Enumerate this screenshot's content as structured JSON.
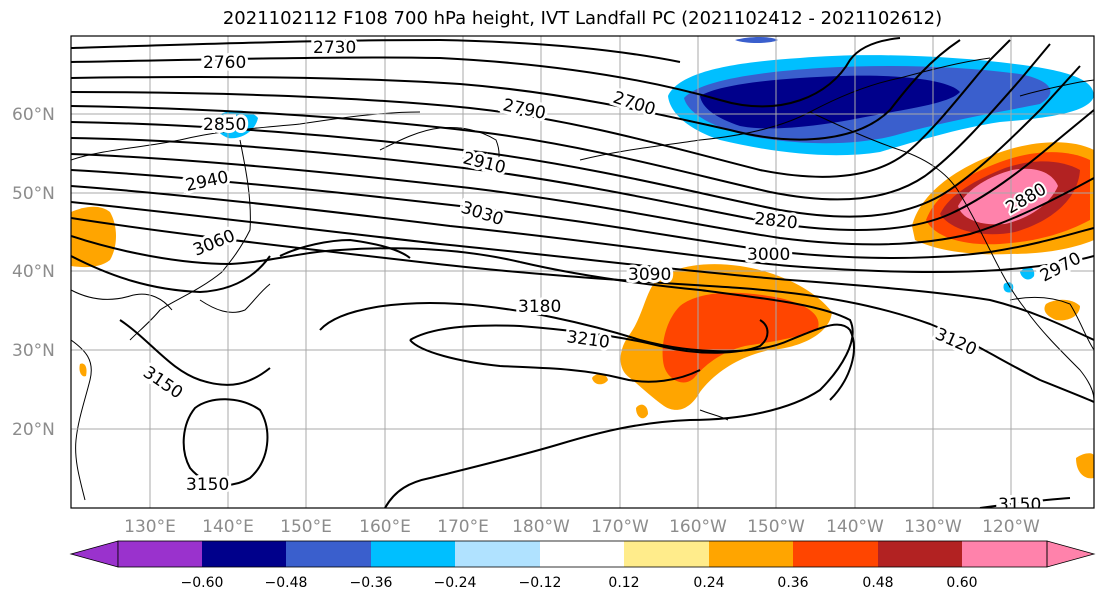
{
  "title": "2021102112 F108 700 hPa height, IVT Landfall PC (2021102412 - 2021102612)",
  "lat_labels": [
    "60°N",
    "50°N",
    "40°N",
    "30°N",
    "20°N"
  ],
  "lon_labels": [
    "130°E",
    "140°E",
    "150°E",
    "160°E",
    "170°E",
    "180°W",
    "170°W",
    "160°W",
    "150°W",
    "140°W",
    "130°W",
    "120°W"
  ],
  "colorbar": {
    "ticks": [
      "−0.60",
      "−0.48",
      "−0.36",
      "−0.24",
      "−0.12",
      "0.12",
      "0.24",
      "0.36",
      "0.48",
      "0.60"
    ],
    "colors": [
      "#9a32cd",
      "#00008b",
      "#3a5fcd",
      "#00bfff",
      "#b0e2ff",
      "#ffffff",
      "#ffec8b",
      "#ffa500",
      "#ff4500",
      "#b22222",
      "#ff82ab",
      "#ff82ab"
    ]
  },
  "contour_labels": [
    "2730",
    "2760",
    "2700",
    "2790",
    "2850",
    "2910",
    "2940",
    "3030",
    "2820",
    "3060",
    "3000",
    "3090",
    "2970",
    "3180",
    "3210",
    "3120",
    "3150",
    "3150",
    "3150",
    "2880"
  ],
  "shading_colors": {
    "dark_blue": "#00008b",
    "med_blue": "#3a5fcd",
    "cyan": "#00bfff",
    "light_cyan": "#b0e2ff",
    "yellow": "#ffec8b",
    "orange": "#ffa500",
    "red_orange": "#ff4500",
    "dark_red": "#b22222",
    "pink": "#ff82ab"
  }
}
